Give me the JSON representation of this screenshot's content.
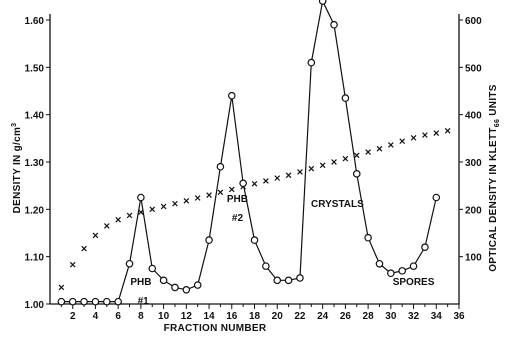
{
  "chart_data": {
    "type": "line",
    "xlabel": "FRACTION NUMBER",
    "ylabel_left": "DENSITY IN g/cm3",
    "ylabel_left_main": "DENSITY IN g/cm",
    "ylabel_left_sup": "3",
    "ylabel_right": "OPTICAL DENSITY IN KLETT",
    "ylabel_right_sub": "66",
    "ylabel_right_tail": " UNITS",
    "xlim": [
      0,
      36
    ],
    "ylim_left": [
      1.0,
      1.6
    ],
    "ylim_right": [
      0,
      600
    ],
    "x_ticks": [
      2,
      4,
      6,
      8,
      10,
      12,
      14,
      16,
      18,
      20,
      22,
      24,
      26,
      28,
      30,
      32,
      34,
      36
    ],
    "x_tick_labels": [
      "2",
      "4",
      "6",
      "8",
      "10",
      "12",
      "14",
      "16",
      "18",
      "20",
      "22",
      "24",
      "26",
      "28",
      "30",
      "32",
      "34",
      "36"
    ],
    "y_left_ticks": [
      1.0,
      1.1,
      1.2,
      1.3,
      1.4,
      1.5,
      1.6
    ],
    "y_left_tick_labels": [
      "1.00",
      "1.10",
      "1.20",
      "1.30",
      "1.40",
      "1.50",
      "1.60"
    ],
    "y_right_ticks": [
      100,
      200,
      300,
      400,
      500,
      600
    ],
    "y_right_tick_labels": [
      "100",
      "200",
      "300",
      "400",
      "500",
      "600"
    ],
    "series": [
      {
        "marker": "circle",
        "axis": "right",
        "x": [
          1,
          2,
          3,
          4,
          5,
          6,
          7,
          8,
          9,
          10,
          11,
          12,
          13,
          14,
          15,
          16,
          17,
          18,
          19,
          20,
          21,
          22,
          23,
          24,
          25,
          26,
          27,
          28,
          29,
          30,
          31,
          32,
          33,
          34
        ],
        "values": [
          5,
          5,
          5,
          5,
          5,
          5,
          85,
          225,
          75,
          50,
          35,
          30,
          40,
          135,
          290,
          440,
          255,
          135,
          80,
          50,
          50,
          55,
          510,
          640,
          590,
          435,
          275,
          140,
          85,
          65,
          70,
          80,
          120,
          225
        ]
      },
      {
        "marker": "cross",
        "axis": "left",
        "x": [
          1,
          2,
          3,
          4,
          5,
          6,
          7,
          8,
          9,
          10,
          11,
          12,
          13,
          14,
          15,
          16,
          17,
          18,
          19,
          20,
          21,
          22,
          23,
          24,
          25,
          26,
          27,
          28,
          29,
          30,
          31,
          32,
          33,
          34,
          35
        ],
        "values": [
          1.035,
          1.083,
          1.117,
          1.145,
          1.165,
          1.178,
          1.187,
          1.194,
          1.2,
          1.206,
          1.212,
          1.218,
          1.224,
          1.23,
          1.236,
          1.242,
          1.248,
          1.254,
          1.26,
          1.266,
          1.272,
          1.279,
          1.286,
          1.293,
          1.3,
          1.307,
          1.314,
          1.321,
          1.328,
          1.336,
          1.344,
          1.351,
          1.357,
          1.361,
          1.366
        ]
      }
    ],
    "annotations": [
      {
        "text": "PHB",
        "x": 8.0,
        "y_right": 40
      },
      {
        "text": "#1",
        "x": 8.2,
        "y_right": 0
      },
      {
        "text": "PHB",
        "x": 16.5,
        "y_right": 215
      },
      {
        "text": "#2",
        "x": 16.5,
        "y_right": 175
      },
      {
        "text": "CRYSTALS",
        "x": 25.3,
        "y_right": 205
      },
      {
        "text": "SPORES",
        "x": 32.0,
        "y_right": 40
      }
    ]
  }
}
